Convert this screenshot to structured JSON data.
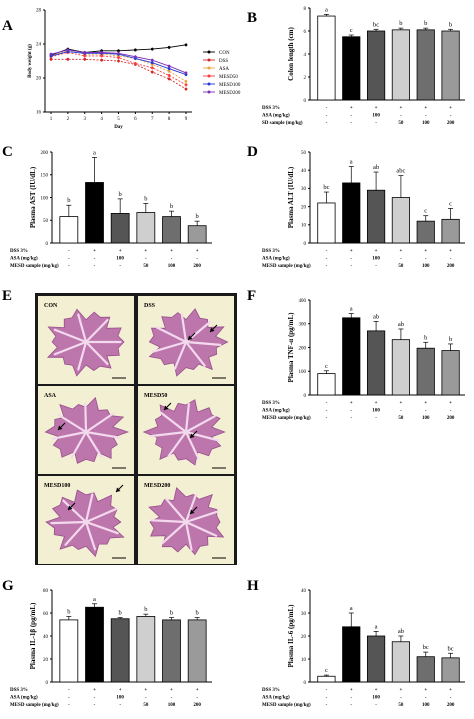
{
  "figure": {
    "panels": [
      "A",
      "B",
      "C",
      "D",
      "E",
      "F",
      "G",
      "H"
    ]
  },
  "colors": {
    "bar_fills": [
      "#ffffff",
      "#000000",
      "#555555",
      "#cfcfcf",
      "#6e6e6e",
      "#9a9a9a"
    ],
    "line_colors": [
      "#000000",
      "#d62728",
      "#e8a33d",
      "#ff3b3b",
      "#1f3bd6",
      "#7a2fb8"
    ],
    "histology_bg": "#f3efd2",
    "histology_tissue": "#b86aa8",
    "histology_border": "#1a1a1a"
  },
  "chart_data": [
    {
      "panel": "A",
      "type": "line",
      "xlabel": "Day",
      "ylabel": "Body weight (g)",
      "x": [
        1,
        2,
        3,
        4,
        5,
        6,
        7,
        8,
        9
      ],
      "xticks": [
        "1",
        "2",
        "3",
        "4",
        "5",
        "6",
        "7",
        "8",
        "9"
      ],
      "ylim": [
        16,
        28
      ],
      "yticks": [
        "16",
        "20",
        "24",
        "28"
      ],
      "series": [
        {
          "name": "CON",
          "values": [
            22.7,
            23.4,
            23.0,
            23.2,
            23.2,
            23.3,
            23.4,
            23.6,
            23.9
          ]
        },
        {
          "name": "DSS",
          "values": [
            22.2,
            22.2,
            22.2,
            22.1,
            22.0,
            21.6,
            20.7,
            19.9,
            18.7
          ]
        },
        {
          "name": "ASA",
          "values": [
            22.6,
            23.2,
            22.8,
            22.8,
            22.6,
            22.3,
            21.6,
            20.8,
            19.6
          ]
        },
        {
          "name": "MESD50",
          "values": [
            22.5,
            23.0,
            22.6,
            22.6,
            22.4,
            21.7,
            21.2,
            20.3,
            19.2
          ]
        },
        {
          "name": "MESD100",
          "values": [
            22.6,
            23.1,
            22.9,
            22.9,
            22.8,
            22.3,
            21.8,
            21.1,
            20.4
          ]
        },
        {
          "name": "MESD200",
          "values": [
            22.8,
            23.3,
            23.0,
            23.0,
            22.9,
            22.5,
            22.1,
            21.4,
            20.6
          ]
        }
      ]
    },
    {
      "panel": "B",
      "type": "bar",
      "ylabel": "Colon length (cm)",
      "ylim": [
        0,
        8
      ],
      "yticks": [
        "0",
        "2",
        "4",
        "6",
        "8"
      ],
      "values": [
        7.3,
        5.5,
        6.0,
        6.1,
        6.1,
        6.0
      ],
      "errors": [
        0.15,
        0.15,
        0.15,
        0.15,
        0.15,
        0.15
      ],
      "letters": [
        "a",
        "c",
        "bc",
        "b",
        "b",
        "b"
      ],
      "treatment_rows": [
        {
          "label": "DSS 3%",
          "cells": [
            "-",
            "+",
            "+",
            "+",
            "+",
            "+"
          ]
        },
        {
          "label": "ASA (mg/kg)",
          "cells": [
            "-",
            "-",
            "100",
            "-",
            "-",
            "-"
          ]
        },
        {
          "label": "SD sample (mg/kg)",
          "cells": [
            "-",
            "-",
            "-",
            "50",
            "100",
            "200"
          ]
        }
      ]
    },
    {
      "panel": "C",
      "type": "bar",
      "ylabel": "Plasma AST (IU/dL)",
      "ylim": [
        0,
        200
      ],
      "yticks": [
        "0",
        "50",
        "100",
        "150",
        "200"
      ],
      "values": [
        58,
        133,
        65,
        67,
        58,
        38
      ],
      "errors": [
        25,
        55,
        32,
        20,
        12,
        10
      ],
      "letters": [
        "b",
        "a",
        "b",
        "b",
        "b",
        "b"
      ],
      "treatment_rows": [
        {
          "label": "DSS 3%",
          "cells": [
            "-",
            "+",
            "+",
            "+",
            "+",
            "+"
          ]
        },
        {
          "label": "ASA (mg/kg)",
          "cells": [
            "-",
            "-",
            "100",
            "-",
            "-",
            "-"
          ]
        },
        {
          "label": "MESD sample (mg/kg)",
          "cells": [
            "-",
            "-",
            "-",
            "50",
            "100",
            "200"
          ]
        }
      ]
    },
    {
      "panel": "D",
      "type": "bar",
      "ylabel": "Plasma ALT (IU/dL)",
      "ylim": [
        0,
        50
      ],
      "yticks": [
        "0",
        "10",
        "20",
        "30",
        "40",
        "50"
      ],
      "values": [
        22,
        33,
        29,
        25,
        12,
        13
      ],
      "errors": [
        6,
        9,
        10,
        12,
        3,
        6
      ],
      "letters": [
        "bc",
        "a",
        "ab",
        "abc",
        "c",
        "c"
      ],
      "treatment_rows": [
        {
          "label": "DSS 3%",
          "cells": [
            "-",
            "+",
            "+",
            "+",
            "+",
            "+"
          ]
        },
        {
          "label": "ASA (mg/kg)",
          "cells": [
            "-",
            "-",
            "100",
            "-",
            "-",
            "-"
          ]
        },
        {
          "label": "MESD sample (mg/kg)",
          "cells": [
            "-",
            "-",
            "-",
            "50",
            "100",
            "200"
          ]
        }
      ]
    },
    {
      "panel": "F",
      "type": "bar",
      "ylabel": "Plasma TNF-α (pg/mL)",
      "ylim": [
        0,
        400
      ],
      "yticks": [
        "0",
        "100",
        "200",
        "300",
        "400"
      ],
      "values": [
        90,
        325,
        270,
        233,
        197,
        187
      ],
      "errors": [
        12,
        18,
        40,
        45,
        25,
        28
      ],
      "letters": [
        "c",
        "a",
        "ab",
        "ab",
        "b",
        "b"
      ],
      "treatment_rows": [
        {
          "label": "DSS 3%",
          "cells": [
            "-",
            "+",
            "+",
            "+",
            "+",
            "+"
          ]
        },
        {
          "label": "ASA (mg/kg)",
          "cells": [
            "-",
            "-",
            "100",
            "-",
            "-",
            "-"
          ]
        },
        {
          "label": "MESD sample (mg/kg)",
          "cells": [
            "-",
            "-",
            "-",
            "50",
            "100",
            "200"
          ]
        }
      ]
    },
    {
      "panel": "G",
      "type": "bar",
      "ylabel": "Plasma IL-1β (pg/mL)",
      "ylim": [
        0,
        80
      ],
      "yticks": [
        "0",
        "20",
        "40",
        "60",
        "80"
      ],
      "values": [
        54,
        65,
        55,
        57,
        54,
        54
      ],
      "errors": [
        3,
        3,
        1,
        2,
        2,
        2
      ],
      "letters": [
        "b",
        "a",
        "b",
        "b",
        "b",
        "b"
      ],
      "treatment_rows": [
        {
          "label": "DSS 3%",
          "cells": [
            "-",
            "+",
            "+",
            "+",
            "+",
            "+"
          ]
        },
        {
          "label": "ASA (mg/kg)",
          "cells": [
            "-",
            "-",
            "100",
            "-",
            "-",
            "-"
          ]
        },
        {
          "label": "MESD sample (mg/kg)",
          "cells": [
            "-",
            "-",
            "-",
            "50",
            "100",
            "200"
          ]
        }
      ]
    },
    {
      "panel": "H",
      "type": "bar",
      "ylabel": "Plasma IL-6 (pg/mL)",
      "ylim": [
        0,
        40
      ],
      "yticks": [
        "0",
        "10",
        "20",
        "30",
        "40"
      ],
      "values": [
        2.5,
        24,
        20,
        17.5,
        11,
        10.5
      ],
      "errors": [
        0.5,
        6,
        2,
        2.5,
        2,
        2
      ],
      "letters": [
        "c",
        "a",
        "a",
        "ab",
        "bc",
        "bc"
      ],
      "treatment_rows": [
        {
          "label": "DSS 3%",
          "cells": [
            "-",
            "+",
            "+",
            "+",
            "+",
            "+"
          ]
        },
        {
          "label": "ASA (mg/kg)",
          "cells": [
            "-",
            "-",
            "100",
            "-",
            "-",
            "-"
          ]
        },
        {
          "label": "MESD sample (mg/kg)",
          "cells": [
            "-",
            "-",
            "-",
            "50",
            "100",
            "200"
          ]
        }
      ]
    }
  ],
  "histology": {
    "panel": "E",
    "tiles": [
      "CON",
      "DSS",
      "ASA",
      "MESD50",
      "MESD100",
      "MESD200"
    ]
  }
}
